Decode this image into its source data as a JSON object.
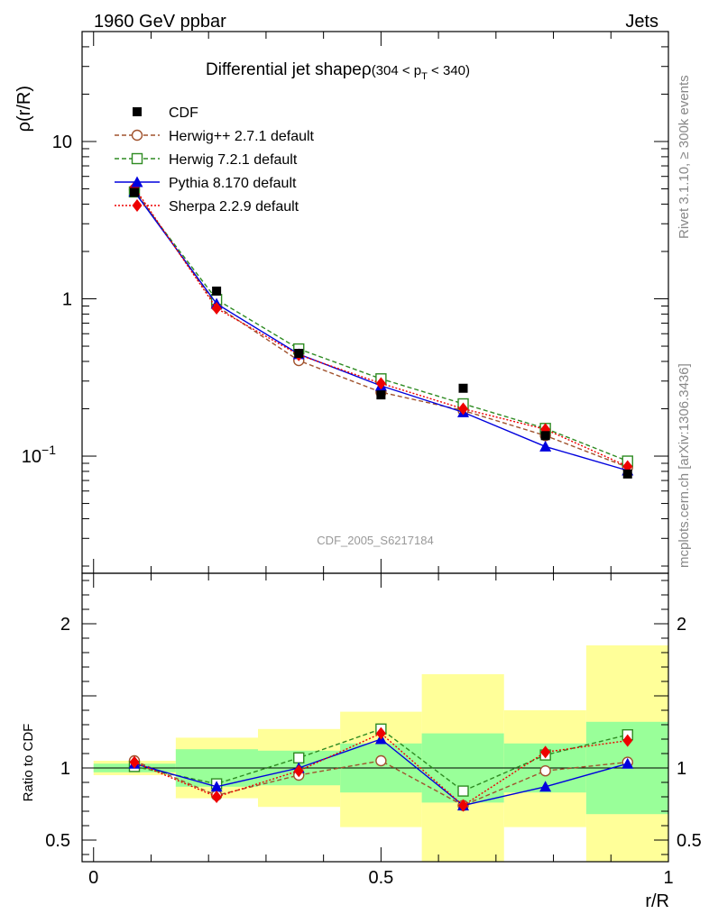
{
  "header": {
    "energy_label": "1960 GeV ppbar",
    "category_label": "Jets",
    "side_rivet": "Rivet 3.1.10, ≥ 300k events",
    "side_mcplots": "mcplots.cern.ch [arXiv:1306.3436]"
  },
  "chart_data": [
    {
      "type": "line",
      "yscale": "log",
      "title_main": "Differential jet shape",
      "title_rho": "ρ",
      "title_range_pre": "(304 < p",
      "title_range_sub": "T",
      "title_range_post": " < 340)",
      "ylabel": "ρ(r/R)",
      "watermark": "CDF_2005_S6217184",
      "xlim": [
        -0.02,
        1.0
      ],
      "ylim": [
        0.018,
        50
      ],
      "yticks": [
        {
          "v": 10,
          "label": "10"
        },
        {
          "v": 1,
          "label": "1"
        },
        {
          "v": 0.1,
          "label": "10",
          "exp": "−1"
        }
      ],
      "x": [
        0.071,
        0.214,
        0.357,
        0.5,
        0.643,
        0.786,
        0.929
      ],
      "data": {
        "name": "CDF",
        "color": "#000000",
        "values": [
          4.75,
          1.12,
          0.45,
          0.245,
          0.27,
          0.135,
          0.077
        ]
      },
      "series": [
        {
          "name": "Herwig++ 2.7.1 default",
          "color": "#a0522d",
          "marker": "circle-open",
          "dash": "5,3",
          "values": [
            4.95,
            0.9,
            0.405,
            0.255,
            0.195,
            0.135,
            0.085
          ]
        },
        {
          "name": "Herwig 7.2.1 default",
          "color": "#2e8b22",
          "marker": "square-open",
          "dash": "5,3",
          "values": [
            4.78,
            0.99,
            0.48,
            0.31,
            0.215,
            0.15,
            0.093
          ]
        },
        {
          "name": "Pythia 8.170 default",
          "color": "#0000dd",
          "marker": "triangle",
          "dash": "",
          "values": [
            4.8,
            0.93,
            0.445,
            0.28,
            0.19,
            0.115,
            0.081
          ]
        },
        {
          "name": "Sherpa 2.2.9 default",
          "color": "#ee0000",
          "marker": "diamond",
          "dash": "2,2",
          "values": [
            5.1,
            0.87,
            0.44,
            0.29,
            0.2,
            0.148,
            0.086
          ]
        }
      ]
    },
    {
      "type": "line",
      "ylabel": "Ratio to CDF",
      "xlabel": "r/R",
      "xlim": [
        -0.02,
        1.0
      ],
      "ylim": [
        0.35,
        2.35
      ],
      "xticks": [
        {
          "v": 0,
          "label": "0"
        },
        {
          "v": 0.5,
          "label": "0.5"
        },
        {
          "v": 1,
          "label": "1"
        }
      ],
      "yticks": [
        {
          "v": 2,
          "label": "2"
        },
        {
          "v": 1,
          "label": "1"
        },
        {
          "v": 0.5,
          "label": "0.5"
        }
      ],
      "bins": [
        [
          0.0,
          0.143
        ],
        [
          0.143,
          0.286
        ],
        [
          0.286,
          0.429
        ],
        [
          0.429,
          0.571
        ],
        [
          0.571,
          0.714
        ],
        [
          0.714,
          0.857
        ],
        [
          0.857,
          1.0
        ]
      ],
      "band_stat": [
        [
          0.97,
          1.03
        ],
        [
          0.87,
          1.13
        ],
        [
          0.88,
          1.12
        ],
        [
          0.83,
          1.17
        ],
        [
          0.76,
          1.24
        ],
        [
          0.83,
          1.17
        ],
        [
          0.68,
          1.32
        ]
      ],
      "band_total": [
        [
          0.95,
          1.05
        ],
        [
          0.79,
          1.21
        ],
        [
          0.73,
          1.27
        ],
        [
          0.59,
          1.39
        ],
        [
          0.35,
          1.65
        ],
        [
          0.59,
          1.4
        ],
        [
          0.35,
          1.85
        ]
      ],
      "x": [
        0.071,
        0.214,
        0.357,
        0.5,
        0.643,
        0.786,
        0.929
      ],
      "series": [
        {
          "name": "Herwig++ 2.7.1 default",
          "color": "#a0522d",
          "marker": "circle-open",
          "dash": "5,3",
          "values": [
            1.05,
            0.81,
            0.95,
            1.05,
            0.74,
            0.98,
            1.04
          ]
        },
        {
          "name": "Herwig 7.2.1 default",
          "color": "#2e8b22",
          "marker": "square-open",
          "dash": "5,3",
          "values": [
            1.01,
            0.89,
            1.07,
            1.27,
            0.84,
            1.09,
            1.23
          ]
        },
        {
          "name": "Pythia 8.170 default",
          "color": "#0000dd",
          "marker": "triangle",
          "dash": "",
          "values": [
            1.03,
            0.87,
            1.0,
            1.2,
            0.74,
            0.87,
            1.03
          ]
        },
        {
          "name": "Sherpa 2.2.9 default",
          "color": "#ee0000",
          "marker": "diamond",
          "dash": "2,2",
          "values": [
            1.04,
            0.8,
            0.98,
            1.24,
            0.74,
            1.11,
            1.19
          ]
        }
      ]
    }
  ]
}
